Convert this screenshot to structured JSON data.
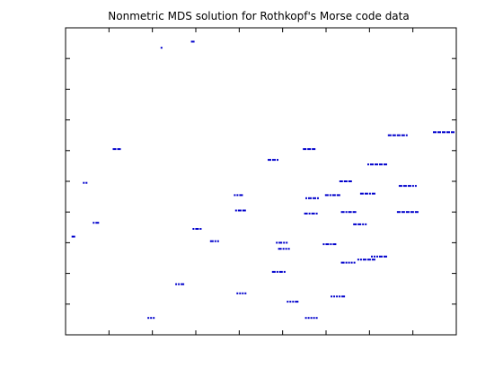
{
  "chart_data": {
    "type": "scatter",
    "title": "Nonmetric MDS solution for Rothkopf's Morse code data",
    "xlabel": "",
    "ylabel": "",
    "xlim": [
      0,
      9
    ],
    "ylim": [
      0,
      10
    ],
    "x_tick_values": [
      1,
      2,
      3,
      4,
      5,
      6,
      7,
      8
    ],
    "y_tick_values": [
      1,
      2,
      3,
      4,
      5,
      6,
      7,
      8,
      9
    ],
    "x_tick_labels_shown": false,
    "y_tick_labels_shown": false,
    "grid": false,
    "legend": "none",
    "marker_color": "#0000cc",
    "marker_description": "each point is drawn as its Morse code symbol: dot = short dash, dash = longer dash",
    "points": [
      {
        "x": 0.18,
        "y": 3.2,
        "code": "-"
      },
      {
        "x": 0.45,
        "y": 4.95,
        "code": ".."
      },
      {
        "x": 0.7,
        "y": 3.65,
        "code": ".-"
      },
      {
        "x": 1.18,
        "y": 6.05,
        "code": "--"
      },
      {
        "x": 1.97,
        "y": 0.55,
        "code": "..."
      },
      {
        "x": 2.21,
        "y": 9.35,
        "code": "."
      },
      {
        "x": 2.93,
        "y": 9.55,
        "code": "-"
      },
      {
        "x": 2.63,
        "y": 1.65,
        "code": "..-"
      },
      {
        "x": 3.03,
        "y": 3.45,
        "code": ".-."
      },
      {
        "x": 3.43,
        "y": 3.05,
        "code": "-.."
      },
      {
        "x": 3.98,
        "y": 4.55,
        "code": "..-"
      },
      {
        "x": 4.03,
        "y": 4.05,
        "code": ".--"
      },
      {
        "x": 4.05,
        "y": 1.35,
        "code": "...."
      },
      {
        "x": 4.78,
        "y": 5.7,
        "code": "--."
      },
      {
        "x": 4.98,
        "y": 3.0,
        "code": ".-.."
      },
      {
        "x": 5.03,
        "y": 2.8,
        "code": "-..."
      },
      {
        "x": 4.91,
        "y": 2.05,
        "code": "-.-."
      },
      {
        "x": 5.23,
        "y": 1.08,
        "code": "...-"
      },
      {
        "x": 5.61,
        "y": 6.05,
        "code": "---"
      },
      {
        "x": 5.68,
        "y": 4.45,
        "code": ".--."
      },
      {
        "x": 5.65,
        "y": 3.95,
        "code": "-.-."
      },
      {
        "x": 5.66,
        "y": 0.55,
        "code": "....."
      },
      {
        "x": 6.08,
        "y": 2.95,
        "code": ".-.-"
      },
      {
        "x": 6.15,
        "y": 4.55,
        "code": "-.--"
      },
      {
        "x": 6.45,
        "y": 5.0,
        "code": "---"
      },
      {
        "x": 6.52,
        "y": 4.0,
        "code": "-.--"
      },
      {
        "x": 6.51,
        "y": 2.35,
        "code": "-...."
      },
      {
        "x": 6.27,
        "y": 1.25,
        "code": "....-"
      },
      {
        "x": 6.96,
        "y": 4.6,
        "code": "--.-"
      },
      {
        "x": 6.93,
        "y": 2.45,
        "code": "..---"
      },
      {
        "x": 7.18,
        "y": 5.55,
        "code": ".----"
      },
      {
        "x": 7.22,
        "y": 2.55,
        "code": "...--"
      },
      {
        "x": 7.65,
        "y": 6.5,
        "code": "----."
      },
      {
        "x": 7.88,
        "y": 4.85,
        "code": "---.."
      },
      {
        "x": 7.88,
        "y": 4.0,
        "code": "-----"
      },
      {
        "x": 8.71,
        "y": 6.6,
        "code": "-----"
      },
      {
        "x": 6.78,
        "y": 3.6,
        "code": "--.."
      }
    ]
  }
}
